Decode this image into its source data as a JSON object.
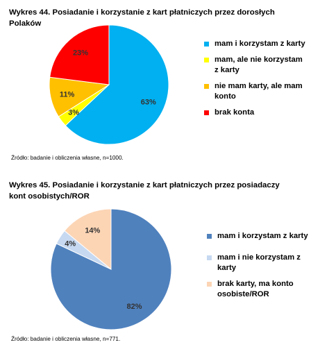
{
  "chart_data": [
    {
      "type": "pie",
      "title": "Wykres 44. Posiadanie i korzystanie z kart płatniczych przez dorosłych Polaków",
      "source": "Źródło: badanie i obliczenia własne, n=1000.",
      "slices": [
        {
          "label": "mam i korzystam z karty",
          "value": 63,
          "display": "63%",
          "color": "#00B0F0"
        },
        {
          "label": "mam, ale nie korzystam z karty",
          "value": 3,
          "display": "3%",
          "color": "#FFFF00"
        },
        {
          "label": "nie mam karty, ale mam konto",
          "value": 11,
          "display": "11%",
          "color": "#FFC000"
        },
        {
          "label": "brak konta",
          "value": 23,
          "display": "23%",
          "color": "#FF0000"
        }
      ]
    },
    {
      "type": "pie",
      "title": "Wykres 45. Posiadanie i korzystanie z kart płatniczych przez posiadaczy kont osobistych/ROR",
      "source": "Źródło: badanie i obliczenia własne, n=771.",
      "slices": [
        {
          "label": "mam i korzystam z karty",
          "value": 82,
          "display": "82%",
          "color": "#4F81BD"
        },
        {
          "label": "mam i nie korzystam z karty",
          "value": 4,
          "display": "4%",
          "color": "#C6D9F1"
        },
        {
          "label": "brak karty, ma konto osobiste/ROR",
          "value": 14,
          "display": "14%",
          "color": "#FCD5B5"
        }
      ]
    }
  ]
}
